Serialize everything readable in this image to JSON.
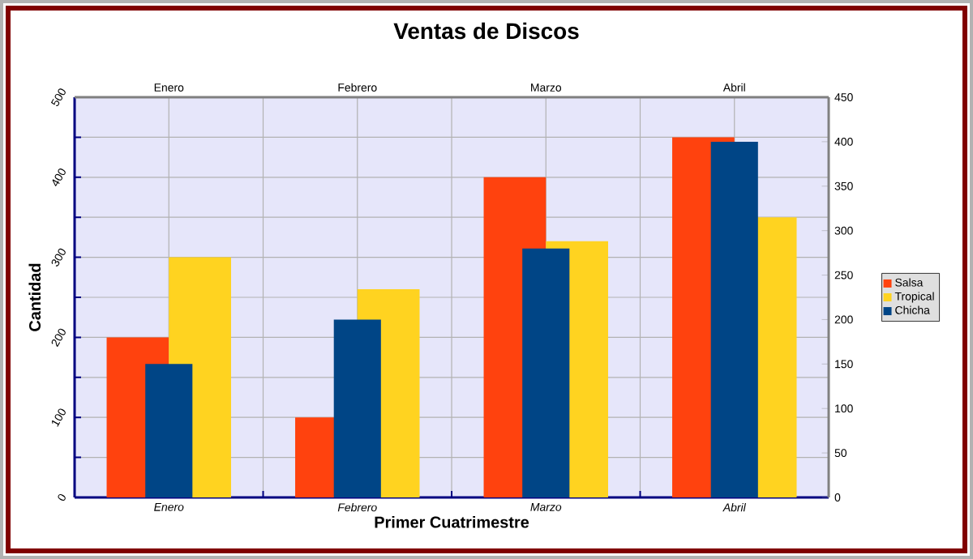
{
  "chart_data": {
    "type": "bar",
    "title": "Ventas de Discos",
    "xlabel": "Primer Cuatrimestre",
    "ylabel": "Cantidad",
    "categories": [
      "Enero",
      "Febrero",
      "Marzo",
      "Abril"
    ],
    "series": [
      {
        "name": "Salsa",
        "color": "#ff420e",
        "values": [
          200,
          100,
          400,
          450
        ]
      },
      {
        "name": "Tropical",
        "color": "#ffd320",
        "values": [
          300,
          260,
          320,
          350
        ]
      },
      {
        "name": "Chicha",
        "color": "#004586",
        "values": [
          150,
          200,
          280,
          400
        ],
        "axis": "y2"
      }
    ],
    "ylim": [
      0,
      500
    ],
    "yticks": [
      0,
      {
        "value": 50,
        "label": null
      },
      100,
      {
        "value": 150,
        "label": null
      },
      200,
      {
        "value": 250,
        "label": null
      },
      300,
      {
        "value": 350,
        "label": null
      },
      400,
      {
        "value": 450,
        "label": null
      },
      500
    ],
    "y2lim": [
      0,
      450
    ],
    "y2ticks": [
      0,
      50,
      100,
      150,
      200,
      250,
      300,
      350,
      400,
      450
    ],
    "grid": true,
    "legend": "right"
  }
}
